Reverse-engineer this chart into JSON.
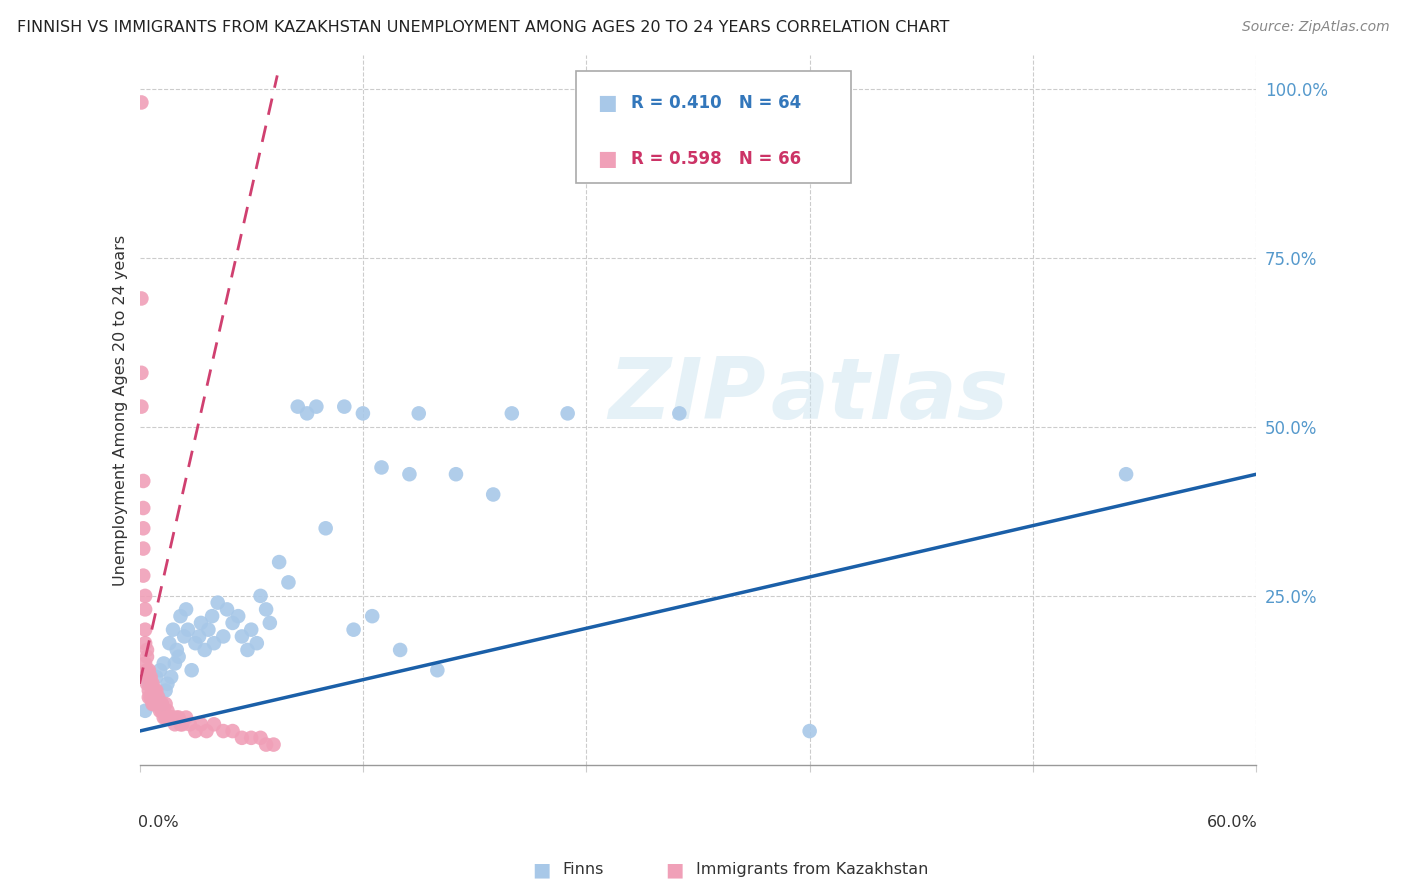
{
  "title": "FINNISH VS IMMIGRANTS FROM KAZAKHSTAN UNEMPLOYMENT AMONG AGES 20 TO 24 YEARS CORRELATION CHART",
  "source": "Source: ZipAtlas.com",
  "ylabel": "Unemployment Among Ages 20 to 24 years",
  "ytick_labels": [
    "100.0%",
    "75.0%",
    "50.0%",
    "25.0%"
  ],
  "ytick_values": [
    1.0,
    0.75,
    0.5,
    0.25
  ],
  "legend_r_finns": "R = 0.410",
  "legend_n_finns": "N = 64",
  "legend_r_kaz": "R = 0.598",
  "legend_n_kaz": "N = 66",
  "finns_color": "#a8c8e8",
  "finns_edge_color": "#a8c8e8",
  "finns_line_color": "#1a5fa8",
  "kaz_color": "#f0a0b8",
  "kaz_edge_color": "#f0a0b8",
  "kaz_line_color": "#d04070",
  "finns_x": [
    0.003,
    0.005,
    0.006,
    0.007,
    0.008,
    0.009,
    0.01,
    0.011,
    0.012,
    0.013,
    0.014,
    0.015,
    0.016,
    0.017,
    0.018,
    0.019,
    0.02,
    0.021,
    0.022,
    0.024,
    0.025,
    0.026,
    0.028,
    0.03,
    0.032,
    0.033,
    0.035,
    0.037,
    0.039,
    0.04,
    0.042,
    0.045,
    0.047,
    0.05,
    0.053,
    0.055,
    0.058,
    0.06,
    0.063,
    0.065,
    0.068,
    0.07,
    0.075,
    0.08,
    0.085,
    0.09,
    0.095,
    0.1,
    0.11,
    0.115,
    0.12,
    0.125,
    0.13,
    0.14,
    0.145,
    0.15,
    0.16,
    0.17,
    0.19,
    0.2,
    0.23,
    0.29,
    0.36,
    0.53
  ],
  "finns_y": [
    0.08,
    0.12,
    0.1,
    0.09,
    0.11,
    0.13,
    0.1,
    0.14,
    0.09,
    0.15,
    0.11,
    0.12,
    0.18,
    0.13,
    0.2,
    0.15,
    0.17,
    0.16,
    0.22,
    0.19,
    0.23,
    0.2,
    0.14,
    0.18,
    0.19,
    0.21,
    0.17,
    0.2,
    0.22,
    0.18,
    0.24,
    0.19,
    0.23,
    0.21,
    0.22,
    0.19,
    0.17,
    0.2,
    0.18,
    0.25,
    0.23,
    0.21,
    0.3,
    0.27,
    0.53,
    0.52,
    0.53,
    0.35,
    0.53,
    0.2,
    0.52,
    0.22,
    0.44,
    0.17,
    0.43,
    0.52,
    0.14,
    0.43,
    0.4,
    0.52,
    0.52,
    0.52,
    0.05,
    0.43
  ],
  "kaz_x": [
    0.001,
    0.001,
    0.001,
    0.001,
    0.002,
    0.002,
    0.002,
    0.002,
    0.002,
    0.003,
    0.003,
    0.003,
    0.003,
    0.003,
    0.004,
    0.004,
    0.004,
    0.004,
    0.005,
    0.005,
    0.005,
    0.005,
    0.006,
    0.006,
    0.006,
    0.007,
    0.007,
    0.007,
    0.008,
    0.008,
    0.008,
    0.009,
    0.009,
    0.01,
    0.01,
    0.011,
    0.011,
    0.012,
    0.012,
    0.013,
    0.013,
    0.014,
    0.014,
    0.015,
    0.015,
    0.016,
    0.017,
    0.018,
    0.019,
    0.02,
    0.021,
    0.022,
    0.023,
    0.025,
    0.027,
    0.03,
    0.033,
    0.036,
    0.04,
    0.045,
    0.05,
    0.055,
    0.06,
    0.065,
    0.068,
    0.072
  ],
  "kaz_y": [
    0.98,
    0.69,
    0.58,
    0.53,
    0.42,
    0.38,
    0.35,
    0.32,
    0.28,
    0.25,
    0.23,
    0.2,
    0.18,
    0.15,
    0.17,
    0.16,
    0.14,
    0.12,
    0.14,
    0.13,
    0.11,
    0.1,
    0.13,
    0.12,
    0.1,
    0.12,
    0.11,
    0.09,
    0.11,
    0.1,
    0.09,
    0.11,
    0.09,
    0.1,
    0.09,
    0.09,
    0.08,
    0.09,
    0.08,
    0.08,
    0.07,
    0.09,
    0.07,
    0.08,
    0.07,
    0.07,
    0.07,
    0.07,
    0.06,
    0.07,
    0.07,
    0.06,
    0.06,
    0.07,
    0.06,
    0.05,
    0.06,
    0.05,
    0.06,
    0.05,
    0.05,
    0.04,
    0.04,
    0.04,
    0.03,
    0.03
  ],
  "finns_trendline_x": [
    0.0,
    0.6
  ],
  "finns_trendline_y": [
    0.05,
    0.43
  ],
  "kaz_trendline_x": [
    0.0,
    0.074
  ],
  "kaz_trendline_y": [
    0.12,
    1.02
  ],
  "xlim": [
    0.0,
    0.6
  ],
  "ylim": [
    0.0,
    1.05
  ],
  "xtick_positions": [
    0.0,
    0.12,
    0.24,
    0.36,
    0.48,
    0.6
  ],
  "ytick_grid_values": [
    0.25,
    0.5,
    0.75,
    1.0
  ]
}
